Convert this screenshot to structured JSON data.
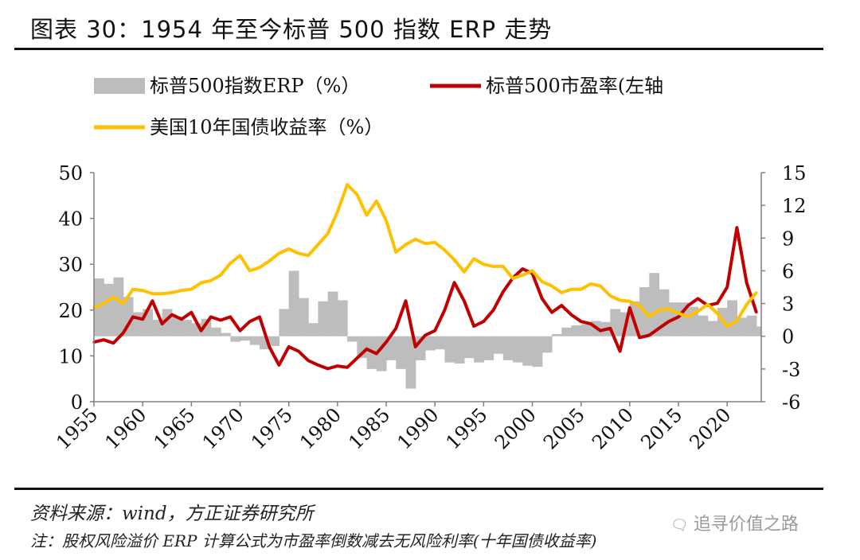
{
  "header": {
    "title": "图表 30：1954 年至今标普 500 指数 ERP 走势"
  },
  "footer": {
    "source": "资料来源：wind，方正证券研究所",
    "note": "注：股权风险溢价 ERP 计算公式为市盈率倒数减去无风险利率(十年国债收益率)",
    "watermark": "追寻价值之路",
    "watermark_icon": "wechat-bubble-icon"
  },
  "chart_data": {
    "type": "line",
    "title": "",
    "xlabel": "",
    "ylabel": "",
    "xlim": [
      1955,
      2023.5
    ],
    "x_ticks": [
      1955,
      1960,
      1965,
      1970,
      1975,
      1980,
      1985,
      1990,
      1995,
      2000,
      2005,
      2010,
      2015,
      2020
    ],
    "y_left": {
      "lim": [
        0,
        50
      ],
      "ticks": [
        0,
        10,
        20,
        30,
        40,
        50
      ]
    },
    "y_right": {
      "lim": [
        -6,
        15
      ],
      "ticks": [
        -6,
        -3,
        0,
        3,
        6,
        9,
        12,
        15
      ]
    },
    "legend": [
      {
        "label": "标普500指数ERP（%）",
        "color": "#bdbdbd",
        "kind": "area"
      },
      {
        "label": "标普500市盈率(左轴",
        "color": "#c00000",
        "kind": "line"
      },
      {
        "label": "美国10年国债收益率（%）",
        "color": "#ffc000",
        "kind": "line"
      }
    ],
    "legend_position": "top",
    "series": [
      {
        "name": "标普500指数ERP（%）",
        "axis": "right",
        "type": "area",
        "color": "#bdbdbd",
        "points": [
          [
            1955,
            5.3
          ],
          [
            1956,
            4.8
          ],
          [
            1957,
            5.4
          ],
          [
            1958,
            3.6
          ],
          [
            1959,
            2.2
          ],
          [
            1960,
            2.5
          ],
          [
            1961,
            1.5
          ],
          [
            1962,
            2.5
          ],
          [
            1963,
            1.8
          ],
          [
            1964,
            1.5
          ],
          [
            1965,
            1.2
          ],
          [
            1966,
            1.6
          ],
          [
            1967,
            0.8
          ],
          [
            1968,
            0.3
          ],
          [
            1969,
            -0.5
          ],
          [
            1970,
            -0.4
          ],
          [
            1971,
            -0.8
          ],
          [
            1972,
            -1.2
          ],
          [
            1973,
            -0.9
          ],
          [
            1974,
            2.5
          ],
          [
            1975,
            6.0
          ],
          [
            1976,
            3.5
          ],
          [
            1977,
            1.2
          ],
          [
            1978,
            3.2
          ],
          [
            1979,
            4.1
          ],
          [
            1980,
            3.3
          ],
          [
            1981,
            -0.5
          ],
          [
            1982,
            -2.0
          ],
          [
            1983,
            -3.0
          ],
          [
            1984,
            -3.2
          ],
          [
            1985,
            -2.2
          ],
          [
            1986,
            -3.0
          ],
          [
            1987,
            -4.8
          ],
          [
            1988,
            -2.2
          ],
          [
            1989,
            -1.3
          ],
          [
            1990,
            -1.2
          ],
          [
            1991,
            -2.4
          ],
          [
            1992,
            -2.5
          ],
          [
            1993,
            -2.0
          ],
          [
            1994,
            -2.4
          ],
          [
            1995,
            -2.2
          ],
          [
            1996,
            -1.6
          ],
          [
            1997,
            -2.2
          ],
          [
            1998,
            -2.4
          ],
          [
            1999,
            -2.7
          ],
          [
            2000,
            -2.8
          ],
          [
            2001,
            -1.5
          ],
          [
            2002,
            0.2
          ],
          [
            2003,
            0.8
          ],
          [
            2004,
            1.0
          ],
          [
            2005,
            1.1
          ],
          [
            2006,
            1.4
          ],
          [
            2007,
            1.3
          ],
          [
            2008,
            2.5
          ],
          [
            2009,
            2.2
          ],
          [
            2010,
            3.2
          ],
          [
            2011,
            4.5
          ],
          [
            2012,
            5.8
          ],
          [
            2013,
            4.3
          ],
          [
            2014,
            3.1
          ],
          [
            2015,
            3.1
          ],
          [
            2016,
            2.7
          ],
          [
            2017,
            1.9
          ],
          [
            2018,
            1.4
          ],
          [
            2019,
            2.6
          ],
          [
            2020,
            3.3
          ],
          [
            2021,
            1.7
          ],
          [
            2022,
            1.9
          ],
          [
            2023,
            0.9
          ]
        ]
      },
      {
        "name": "标普500市盈率(左轴",
        "axis": "left",
        "type": "line",
        "color": "#c00000",
        "points": [
          [
            1955,
            13
          ],
          [
            1956,
            13.5
          ],
          [
            1957,
            12.8
          ],
          [
            1958,
            15
          ],
          [
            1959,
            18.5
          ],
          [
            1960,
            18
          ],
          [
            1961,
            22
          ],
          [
            1962,
            17
          ],
          [
            1963,
            19
          ],
          [
            1964,
            18
          ],
          [
            1965,
            19.5
          ],
          [
            1966,
            15.5
          ],
          [
            1967,
            18.5
          ],
          [
            1968,
            17.8
          ],
          [
            1969,
            18.5
          ],
          [
            1970,
            15.5
          ],
          [
            1971,
            17.5
          ],
          [
            1972,
            18.5
          ],
          [
            1973,
            12
          ],
          [
            1974,
            8
          ],
          [
            1975,
            12
          ],
          [
            1976,
            11
          ],
          [
            1977,
            9
          ],
          [
            1978,
            8
          ],
          [
            1979,
            7.2
          ],
          [
            1980,
            7.8
          ],
          [
            1981,
            7.5
          ],
          [
            1982,
            9.5
          ],
          [
            1983,
            11.5
          ],
          [
            1984,
            10.5
          ],
          [
            1985,
            13
          ],
          [
            1986,
            16
          ],
          [
            1987,
            22
          ],
          [
            1988,
            12
          ],
          [
            1989,
            14.5
          ],
          [
            1990,
            15.5
          ],
          [
            1991,
            20
          ],
          [
            1992,
            26
          ],
          [
            1993,
            22
          ],
          [
            1994,
            16.5
          ],
          [
            1995,
            17.5
          ],
          [
            1996,
            20
          ],
          [
            1997,
            24
          ],
          [
            1998,
            27
          ],
          [
            1999,
            29
          ],
          [
            2000,
            28
          ],
          [
            2001,
            22.5
          ],
          [
            2002,
            19.5
          ],
          [
            2003,
            21
          ],
          [
            2004,
            19
          ],
          [
            2005,
            17.5
          ],
          [
            2006,
            17
          ],
          [
            2007,
            15.5
          ],
          [
            2008,
            16
          ],
          [
            2009,
            11
          ],
          [
            2010,
            20.5
          ],
          [
            2011,
            14
          ],
          [
            2012,
            14.5
          ],
          [
            2013,
            16
          ],
          [
            2014,
            17.5
          ],
          [
            2015,
            18.5
          ],
          [
            2016,
            21
          ],
          [
            2017,
            22.5
          ],
          [
            2018,
            21
          ],
          [
            2019,
            21.5
          ],
          [
            2020,
            25
          ],
          [
            2021,
            38
          ],
          [
            2022,
            26
          ],
          [
            2023,
            19.5
          ]
        ]
      },
      {
        "name": "美国10年国债收益率（%）",
        "axis": "right",
        "type": "line",
        "color": "#ffc000",
        "points": [
          [
            1955,
            2.6
          ],
          [
            1956,
            3.0
          ],
          [
            1957,
            3.6
          ],
          [
            1958,
            3.0
          ],
          [
            1959,
            4.3
          ],
          [
            1960,
            4.2
          ],
          [
            1961,
            3.9
          ],
          [
            1962,
            3.9
          ],
          [
            1963,
            4.0
          ],
          [
            1964,
            4.2
          ],
          [
            1965,
            4.3
          ],
          [
            1966,
            4.9
          ],
          [
            1967,
            5.1
          ],
          [
            1968,
            5.6
          ],
          [
            1969,
            6.7
          ],
          [
            1970,
            7.4
          ],
          [
            1971,
            6.0
          ],
          [
            1972,
            6.3
          ],
          [
            1973,
            6.9
          ],
          [
            1974,
            7.6
          ],
          [
            1975,
            8.0
          ],
          [
            1976,
            7.6
          ],
          [
            1977,
            7.4
          ],
          [
            1978,
            8.4
          ],
          [
            1979,
            9.4
          ],
          [
            1980,
            11.4
          ],
          [
            1981,
            13.9
          ],
          [
            1982,
            13.0
          ],
          [
            1983,
            11.1
          ],
          [
            1984,
            12.4
          ],
          [
            1985,
            10.6
          ],
          [
            1986,
            7.7
          ],
          [
            1987,
            8.4
          ],
          [
            1988,
            8.9
          ],
          [
            1989,
            8.5
          ],
          [
            1990,
            8.6
          ],
          [
            1991,
            7.9
          ],
          [
            1992,
            7.0
          ],
          [
            1993,
            5.9
          ],
          [
            1994,
            7.1
          ],
          [
            1995,
            6.6
          ],
          [
            1996,
            6.4
          ],
          [
            1997,
            6.4
          ],
          [
            1998,
            5.3
          ],
          [
            1999,
            5.6
          ],
          [
            2000,
            6.0
          ],
          [
            2001,
            5.0
          ],
          [
            2002,
            4.6
          ],
          [
            2003,
            4.0
          ],
          [
            2004,
            4.3
          ],
          [
            2005,
            4.3
          ],
          [
            2006,
            4.8
          ],
          [
            2007,
            4.6
          ],
          [
            2008,
            3.7
          ],
          [
            2009,
            3.3
          ],
          [
            2010,
            3.2
          ],
          [
            2011,
            2.8
          ],
          [
            2012,
            1.8
          ],
          [
            2013,
            2.4
          ],
          [
            2014,
            2.5
          ],
          [
            2015,
            2.1
          ],
          [
            2016,
            1.8
          ],
          [
            2017,
            2.3
          ],
          [
            2018,
            2.9
          ],
          [
            2019,
            2.1
          ],
          [
            2020,
            0.9
          ],
          [
            2021,
            1.4
          ],
          [
            2022,
            2.9
          ],
          [
            2023,
            4.0
          ]
        ]
      }
    ]
  }
}
